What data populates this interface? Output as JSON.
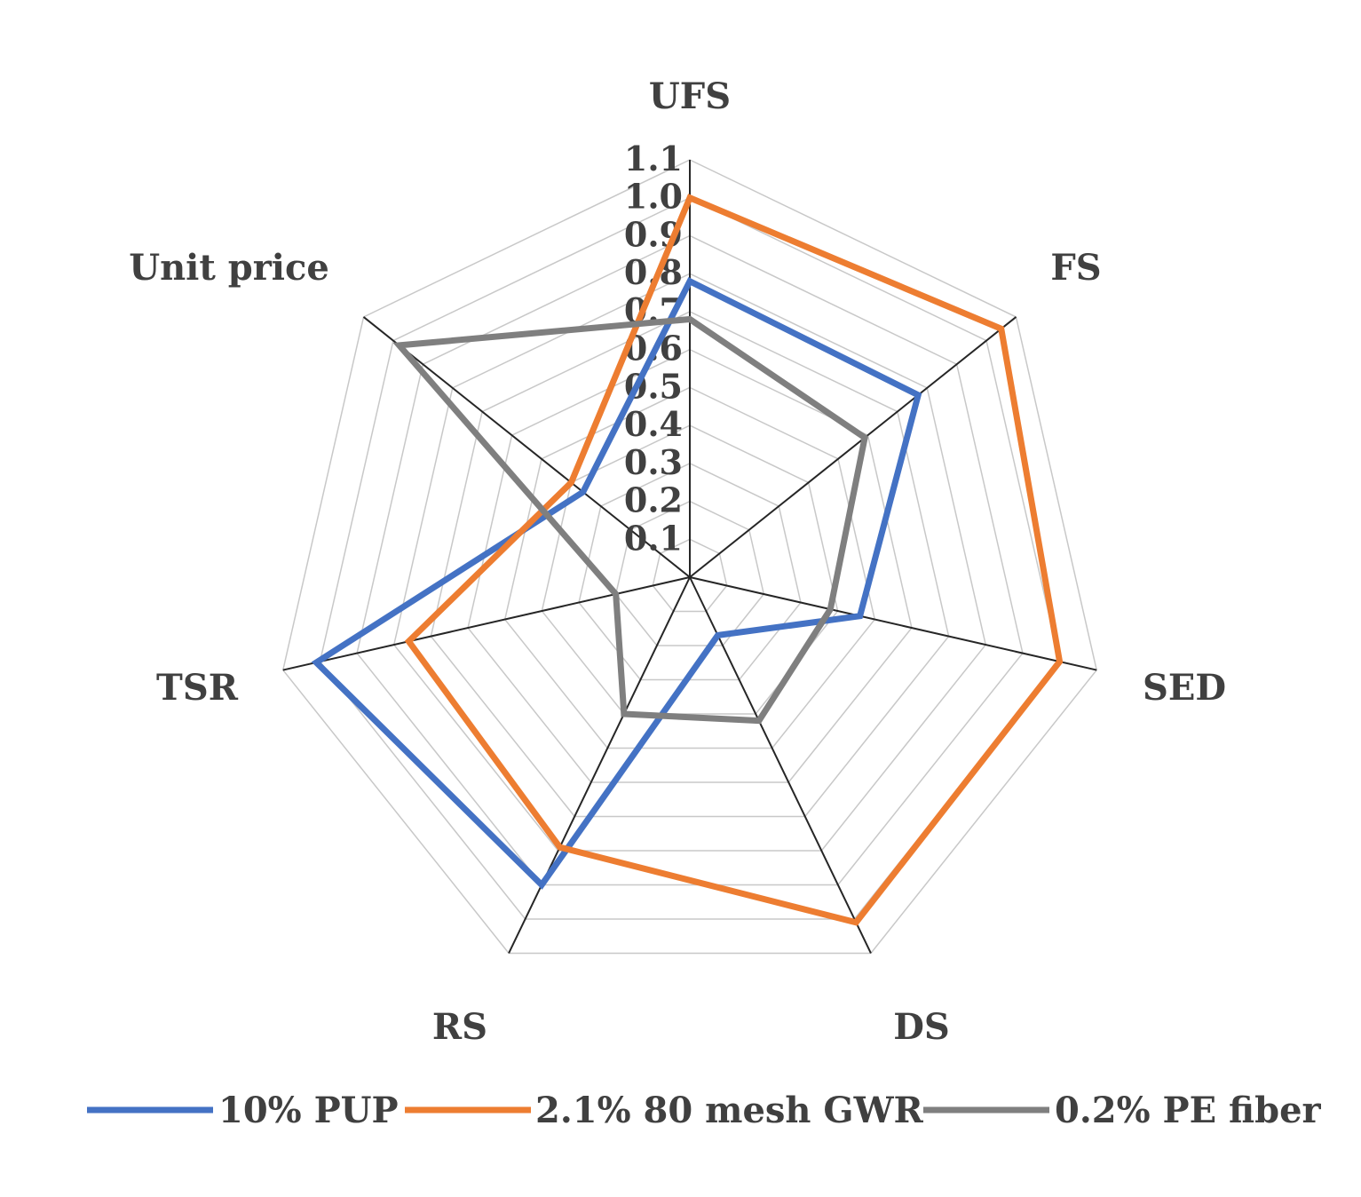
{
  "chart_data": {
    "type": "radar",
    "categories": [
      "UFS",
      "FS",
      "SED",
      "DS",
      "RS",
      "TSR",
      "Unit price"
    ],
    "ticks": [
      "0.1",
      "0.2",
      "0.3",
      "0.4",
      "0.5",
      "0.6",
      "0.7",
      "0.8",
      "0.9",
      "1.0",
      "1.1"
    ],
    "range": [
      0,
      1.1
    ],
    "grid": true,
    "legend_position": "bottom",
    "series": [
      {
        "name": "10% PUP",
        "color": "#4472c4",
        "values": [
          0.78,
          0.77,
          0.46,
          0.17,
          0.9,
          1.01,
          0.36
        ]
      },
      {
        "name": "2.1% 80 mesh GWR",
        "color": "#ed7d31",
        "values": [
          1.0,
          1.05,
          1.0,
          1.01,
          0.79,
          0.76,
          0.4
        ]
      },
      {
        "name": "0.2% PE fiber",
        "color": "#7f7f7f",
        "values": [
          0.68,
          0.59,
          0.38,
          0.42,
          0.4,
          0.2,
          0.98
        ]
      }
    ]
  }
}
